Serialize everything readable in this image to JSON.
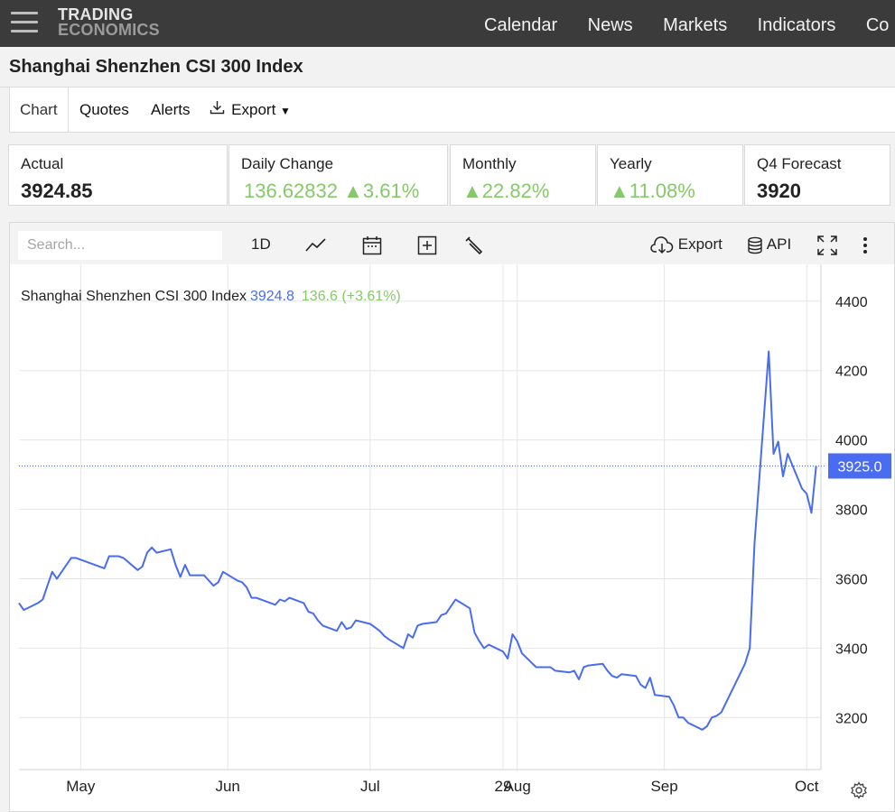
{
  "nav": {
    "logo_line1": "TRADING",
    "logo_line2": "ECONOMICS",
    "links": [
      "Calendar",
      "News",
      "Markets",
      "Indicators",
      "Co"
    ]
  },
  "page": {
    "title": "Shanghai Shenzhen CSI 300 Index"
  },
  "tabs": {
    "chart": "Chart",
    "quotes": "Quotes",
    "alerts": "Alerts",
    "export": "Export"
  },
  "stats": [
    {
      "label": "Actual",
      "value": "3924.85"
    },
    {
      "label": "Daily Change",
      "value": "136.62832 ▲3.61%"
    },
    {
      "label": "Monthly",
      "value": "▲22.82%"
    },
    {
      "label": "Yearly",
      "value": "▲11.08%"
    },
    {
      "label": "Q4 Forecast",
      "value": "3920"
    }
  ],
  "toolbar": {
    "search_placeholder": "Search...",
    "range": "1D",
    "export": "Export",
    "api": "API"
  },
  "legend": {
    "name": "Shanghai Shenzhen CSI 300 Index",
    "value": "3924.8",
    "change": "136.6 (+3.61%)"
  },
  "colors": {
    "line": "#4a6cf0",
    "positive": "#86c96a",
    "nav_bg": "#3b3b3b"
  },
  "chart_data": {
    "type": "line",
    "title": "",
    "xlabel": "",
    "ylabel": "",
    "ylim": [
      3050,
      4480
    ],
    "yticks": [
      3200,
      3400,
      3600,
      3800,
      4000,
      4200,
      4400
    ],
    "xlim": [
      "2024-04-18",
      "2024-10-04"
    ],
    "xticks": [
      {
        "label": "May",
        "date": "2024-05-01"
      },
      {
        "label": "Jun",
        "date": "2024-06-01"
      },
      {
        "label": "Jul",
        "date": "2024-07-01"
      },
      {
        "label": "29",
        "date": "2024-07-29"
      },
      {
        "label": "Aug",
        "date": "2024-08-01"
      },
      {
        "label": "Sep",
        "date": "2024-09-01"
      },
      {
        "label": "Oct",
        "date": "2024-10-01"
      }
    ],
    "last_value_label": "3925.0",
    "last_value": 3925.0,
    "grid": true,
    "series": [
      {
        "name": "Shanghai Shenzhen CSI 300 Index",
        "points": [
          [
            "2024-04-18",
            3530
          ],
          [
            "2024-04-19",
            3510
          ],
          [
            "2024-04-22",
            3530
          ],
          [
            "2024-04-23",
            3540
          ],
          [
            "2024-04-24",
            3580
          ],
          [
            "2024-04-25",
            3620
          ],
          [
            "2024-04-26",
            3600
          ],
          [
            "2024-04-29",
            3660
          ],
          [
            "2024-04-30",
            3660
          ],
          [
            "2024-05-06",
            3630
          ],
          [
            "2024-05-07",
            3665
          ],
          [
            "2024-05-08",
            3665
          ],
          [
            "2024-05-09",
            3665
          ],
          [
            "2024-05-10",
            3660
          ],
          [
            "2024-05-13",
            3625
          ],
          [
            "2024-05-14",
            3635
          ],
          [
            "2024-05-15",
            3675
          ],
          [
            "2024-05-16",
            3690
          ],
          [
            "2024-05-17",
            3675
          ],
          [
            "2024-05-20",
            3685
          ],
          [
            "2024-05-21",
            3640
          ],
          [
            "2024-05-22",
            3605
          ],
          [
            "2024-05-23",
            3640
          ],
          [
            "2024-05-24",
            3610
          ],
          [
            "2024-05-27",
            3610
          ],
          [
            "2024-05-28",
            3595
          ],
          [
            "2024-05-29",
            3580
          ],
          [
            "2024-05-30",
            3590
          ],
          [
            "2024-05-31",
            3620
          ],
          [
            "2024-06-03",
            3595
          ],
          [
            "2024-06-04",
            3590
          ],
          [
            "2024-06-05",
            3575
          ],
          [
            "2024-06-06",
            3545
          ],
          [
            "2024-06-07",
            3545
          ],
          [
            "2024-06-11",
            3525
          ],
          [
            "2024-06-12",
            3540
          ],
          [
            "2024-06-13",
            3535
          ],
          [
            "2024-06-14",
            3545
          ],
          [
            "2024-06-17",
            3530
          ],
          [
            "2024-06-18",
            3505
          ],
          [
            "2024-06-19",
            3500
          ],
          [
            "2024-06-20",
            3480
          ],
          [
            "2024-06-21",
            3465
          ],
          [
            "2024-06-24",
            3450
          ],
          [
            "2024-06-25",
            3475
          ],
          [
            "2024-06-26",
            3455
          ],
          [
            "2024-06-27",
            3460
          ],
          [
            "2024-06-28",
            3480
          ],
          [
            "2024-07-01",
            3470
          ],
          [
            "2024-07-02",
            3460
          ],
          [
            "2024-07-03",
            3450
          ],
          [
            "2024-07-04",
            3435
          ],
          [
            "2024-07-05",
            3425
          ],
          [
            "2024-07-08",
            3400
          ],
          [
            "2024-07-09",
            3440
          ],
          [
            "2024-07-10",
            3430
          ],
          [
            "2024-07-11",
            3465
          ],
          [
            "2024-07-12",
            3470
          ],
          [
            "2024-07-15",
            3475
          ],
          [
            "2024-07-16",
            3495
          ],
          [
            "2024-07-17",
            3500
          ],
          [
            "2024-07-18",
            3520
          ],
          [
            "2024-07-19",
            3540
          ],
          [
            "2024-07-22",
            3515
          ],
          [
            "2024-07-23",
            3445
          ],
          [
            "2024-07-24",
            3420
          ],
          [
            "2024-07-25",
            3400
          ],
          [
            "2024-07-26",
            3410
          ],
          [
            "2024-07-29",
            3390
          ],
          [
            "2024-07-30",
            3370
          ],
          [
            "2024-07-31",
            3440
          ],
          [
            "2024-08-01",
            3420
          ],
          [
            "2024-08-02",
            3385
          ],
          [
            "2024-08-05",
            3345
          ],
          [
            "2024-08-06",
            3345
          ],
          [
            "2024-08-07",
            3345
          ],
          [
            "2024-08-08",
            3345
          ],
          [
            "2024-08-09",
            3335
          ],
          [
            "2024-08-12",
            3330
          ],
          [
            "2024-08-13",
            3335
          ],
          [
            "2024-08-14",
            3310
          ],
          [
            "2024-08-15",
            3345
          ],
          [
            "2024-08-16",
            3350
          ],
          [
            "2024-08-19",
            3355
          ],
          [
            "2024-08-20",
            3335
          ],
          [
            "2024-08-21",
            3320
          ],
          [
            "2024-08-22",
            3315
          ],
          [
            "2024-08-23",
            3325
          ],
          [
            "2024-08-26",
            3320
          ],
          [
            "2024-08-27",
            3295
          ],
          [
            "2024-08-28",
            3285
          ],
          [
            "2024-08-29",
            3315
          ],
          [
            "2024-08-30",
            3265
          ],
          [
            "2024-09-02",
            3260
          ],
          [
            "2024-09-03",
            3235
          ],
          [
            "2024-09-04",
            3200
          ],
          [
            "2024-09-05",
            3200
          ],
          [
            "2024-09-06",
            3185
          ],
          [
            "2024-09-09",
            3165
          ],
          [
            "2024-09-10",
            3175
          ],
          [
            "2024-09-11",
            3200
          ],
          [
            "2024-09-12",
            3205
          ],
          [
            "2024-09-13",
            3215
          ],
          [
            "2024-09-18",
            3355
          ],
          [
            "2024-09-19",
            3400
          ],
          [
            "2024-09-20",
            3700
          ],
          [
            "2024-09-23",
            4255
          ],
          [
            "2024-09-24",
            3960
          ],
          [
            "2024-09-25",
            3995
          ],
          [
            "2024-09-26",
            3895
          ],
          [
            "2024-09-27",
            3960
          ],
          [
            "2024-09-30",
            3860
          ],
          [
            "2024-10-01",
            3845
          ],
          [
            "2024-10-02",
            3790
          ],
          [
            "2024-10-03",
            3925
          ]
        ]
      }
    ]
  }
}
